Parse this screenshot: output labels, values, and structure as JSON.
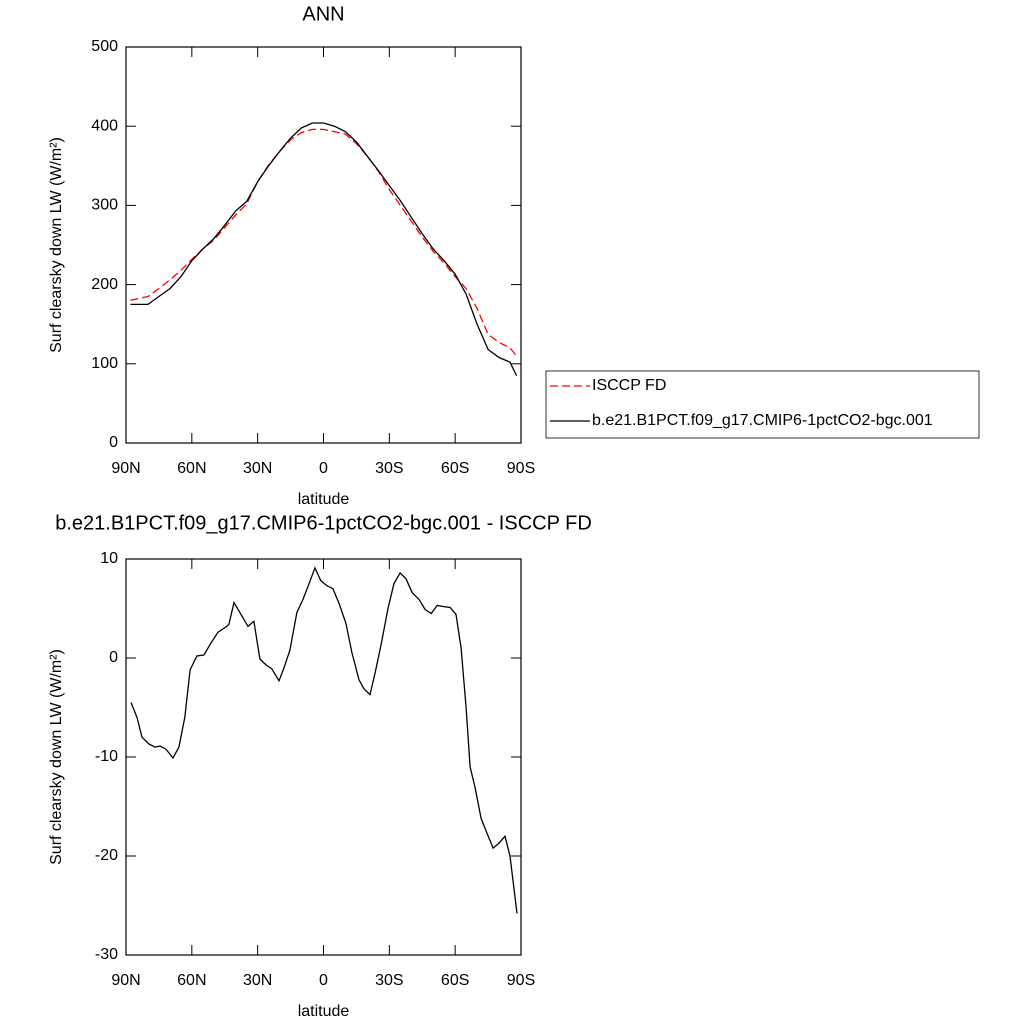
{
  "chart_data": [
    {
      "type": "line",
      "title": "ANN",
      "xlabel": "latitude",
      "ylabel": "Surf clearsky down LW (W/m²)",
      "x": [
        88,
        85,
        80,
        75,
        70,
        65,
        60,
        55,
        50,
        45,
        40,
        35,
        30,
        25,
        20,
        15,
        10,
        5,
        0,
        -5,
        -10,
        -15,
        -20,
        -25,
        -30,
        -35,
        -40,
        -45,
        -50,
        -55,
        -60,
        -65,
        -70,
        -75,
        -80,
        -85,
        -88
      ],
      "series": [
        {
          "name": "ISCCP FD",
          "color": "#ff0000",
          "style": "dashed",
          "values": [
            180,
            182,
            185,
            195,
            206,
            218,
            232,
            245,
            256,
            272,
            288,
            302,
            330,
            351,
            368,
            383,
            392,
            396,
            396,
            393,
            390,
            378,
            362,
            343,
            320,
            300,
            280,
            260,
            242,
            227,
            210,
            195,
            170,
            137,
            127,
            120,
            110
          ]
        },
        {
          "name": "b.e21.B1PCT.f09_g17.CMIP6-1pctCO2-bgc.001",
          "color": "#000000",
          "style": "solid",
          "values": [
            175,
            175,
            175,
            185,
            195,
            210,
            230,
            245,
            258,
            275,
            293,
            305,
            330,
            350,
            368,
            385,
            398,
            404,
            404,
            400,
            393,
            380,
            362,
            344,
            325,
            306,
            285,
            264,
            245,
            230,
            213,
            188,
            150,
            118,
            108,
            102,
            85
          ]
        }
      ],
      "xlim": [
        90,
        -90
      ],
      "xticks": [
        {
          "value": 90,
          "label": "90N"
        },
        {
          "value": 60,
          "label": "60N"
        },
        {
          "value": 30,
          "label": "30N"
        },
        0,
        {
          "value": -30,
          "label": "30S"
        },
        {
          "value": -60,
          "label": "60S"
        },
        {
          "value": -90,
          "label": "90S"
        }
      ],
      "ylim": [
        0,
        500
      ],
      "yticks": [
        0,
        100,
        200,
        300,
        400,
        500
      ],
      "legend": "right"
    },
    {
      "type": "line",
      "title": "b.e21.B1PCT.f09_g17.CMIP6-1pctCO2-bgc.001 - ISCCP FD",
      "xlabel": "latitude",
      "ylabel": "Surf clearsky down LW (W/m²)",
      "x": [
        87.7,
        85.0,
        82.7,
        79.5,
        76.8,
        74.5,
        71.8,
        68.6,
        65.9,
        63.2,
        60.8,
        57.7,
        54.5,
        51.3,
        48.1,
        44.0,
        43.1,
        40.8,
        37.6,
        34.4,
        31.7,
        29.0,
        26.2,
        23.5,
        20.3,
        18.0,
        15.3,
        12.1,
        9.4,
        6.6,
        3.9,
        1.2,
        -1.6,
        -4.3,
        -7.1,
        -10.2,
        -13.0,
        -16.2,
        -18.4,
        -21.2,
        -23.5,
        -26.2,
        -29.4,
        -32.1,
        -34.9,
        -37.6,
        -40.4,
        -43.6,
        -46.3,
        -49.1,
        -51.8,
        -54.5,
        -57.7,
        -60.4,
        -62.7,
        -65.0,
        -66.8,
        -69.0,
        -71.8,
        -74.5,
        -77.3,
        -80.0,
        -82.7,
        -85.0,
        -88.2
      ],
      "values": [
        -4.5,
        -6,
        -8,
        -8.7,
        -9,
        -8.9,
        -9.2,
        -10.1,
        -9,
        -6,
        -1.2,
        0.2,
        0.3,
        1.5,
        2.6,
        3.2,
        3.4,
        5.6,
        4.4,
        3.2,
        3.7,
        -0.1,
        -0.7,
        -1.1,
        -2.3,
        -1,
        0.8,
        4.6,
        5.9,
        7.5,
        9.1,
        7.8,
        7.3,
        7,
        5.5,
        3.5,
        0.5,
        -2.2,
        -3.1,
        -3.7,
        -1.5,
        1.3,
        5,
        7.5,
        8.6,
        8,
        6.6,
        5.9,
        4.9,
        4.5,
        5.3,
        5.2,
        5.1,
        4.4,
        1,
        -5,
        -11,
        -13,
        -16.2,
        -17.7,
        -19.2,
        -18.7,
        -18,
        -20,
        -25.8
      ],
      "color": "#000000",
      "xlim": [
        90,
        -90
      ],
      "xticks": [
        {
          "value": 90,
          "label": "90N"
        },
        {
          "value": 60,
          "label": "60N"
        },
        {
          "value": 30,
          "label": "30N"
        },
        0,
        {
          "value": -30,
          "label": "30S"
        },
        {
          "value": -60,
          "label": "60S"
        },
        {
          "value": -90,
          "label": "90S"
        }
      ],
      "ylim": [
        -30,
        10
      ],
      "yticks": [
        -30,
        -20,
        -10,
        0,
        10
      ]
    }
  ]
}
